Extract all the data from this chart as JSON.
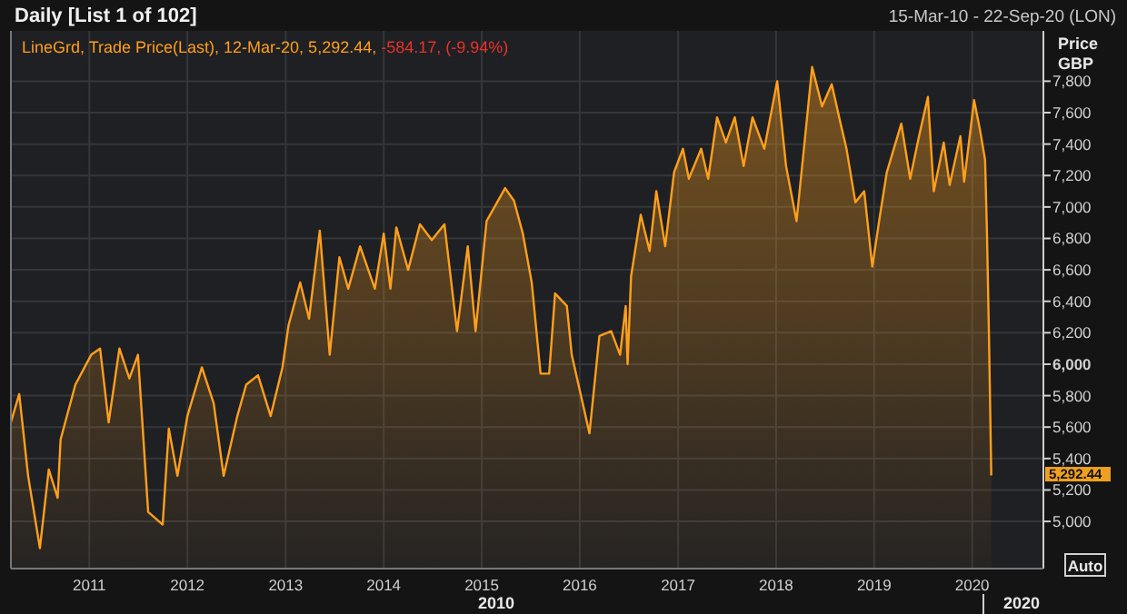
{
  "chart_data": {
    "type": "area",
    "title": "Daily [List 1 of 102]",
    "subtitle": "15-Mar-10 - 22-Sep-20 (LON)",
    "ylabel": "Price GBP",
    "annotations": [
      "-584.17, (-9.94%)",
      "2010",
      "2020",
      "Auto",
      "5,292.44"
    ],
    "x": [
      "2010-03-15",
      "2010-04-15",
      "2010-05-18",
      "2010-07-01",
      "2010-08-03",
      "2010-09-05",
      "2010-09-16",
      "2010-11-10",
      "2011-01-08",
      "2011-02-10",
      "2011-03-14",
      "2011-04-23",
      "2011-05-30",
      "2011-07-01",
      "2011-08-08",
      "2011-10-01",
      "2011-10-24",
      "2011-11-25",
      "2012-01-01",
      "2012-02-24",
      "2012-04-08",
      "2012-05-15",
      "2012-07-05",
      "2012-08-07",
      "2012-09-20",
      "2012-11-06",
      "2012-12-20",
      "2013-01-12",
      "2013-02-24",
      "2013-03-29",
      "2013-05-08",
      "2013-06-14",
      "2013-07-20",
      "2013-08-22",
      "2013-10-05",
      "2013-11-29",
      "2014-01-01",
      "2014-01-26",
      "2014-02-17",
      "2014-04-02",
      "2014-05-16",
      "2014-06-29",
      "2014-08-15",
      "2014-10-01",
      "2014-11-10",
      "2014-12-09",
      "2015-01-19",
      "2015-03-29",
      "2015-05-01",
      "2015-06-03",
      "2015-07-06",
      "2015-08-08",
      "2015-09-09",
      "2015-10-01",
      "2015-11-14",
      "2015-12-02",
      "2016-02-06",
      "2016-03-14",
      "2016-04-27",
      "2016-05-30",
      "2016-06-20",
      "2016-06-27",
      "2016-07-10",
      "2016-08-15",
      "2016-09-17",
      "2016-10-12",
      "2016-11-14",
      "2016-12-17",
      "2017-01-19",
      "2017-02-10",
      "2017-03-28",
      "2017-04-23",
      "2017-05-26",
      "2017-06-28",
      "2017-07-31",
      "2017-09-02",
      "2017-10-05",
      "2017-11-18",
      "2018-01-05",
      "2018-02-07",
      "2018-03-18",
      "2018-04-12",
      "2018-05-15",
      "2018-06-21",
      "2018-07-27",
      "2018-08-29",
      "2018-09-20",
      "2018-10-23",
      "2018-11-25",
      "2018-12-25",
      "2019-01-23",
      "2019-02-17",
      "2019-04-12",
      "2019-05-15",
      "2019-06-17",
      "2019-07-20",
      "2019-08-11",
      "2019-09-17",
      "2019-10-09",
      "2019-11-18",
      "2019-12-02",
      "2020-01-08",
      "2020-01-30",
      "2020-02-18",
      "2020-02-25",
      "2020-03-03",
      "2020-03-12"
    ],
    "series": [
      {
        "name": "LineGrd, Trade Price(Last), 12-Mar-20, 5,292.44,",
        "color": "#ff9f1c",
        "values": [
          5630,
          5810,
          5290,
          4830,
          5330,
          5150,
          5520,
          5870,
          6060,
          6100,
          5630,
          6100,
          5910,
          6060,
          5060,
          4980,
          5590,
          5290,
          5670,
          5980,
          5750,
          5290,
          5670,
          5870,
          5930,
          5670,
          5980,
          6250,
          6520,
          6290,
          6850,
          6060,
          6680,
          6480,
          6750,
          6480,
          6830,
          6480,
          6870,
          6600,
          6890,
          6790,
          6890,
          6210,
          6750,
          6210,
          6910,
          7120,
          7040,
          6830,
          6520,
          5940,
          5940,
          6450,
          6370,
          6060,
          5560,
          6180,
          6210,
          6060,
          6370,
          6000,
          6560,
          6950,
          6720,
          7100,
          6750,
          7220,
          7370,
          7180,
          7370,
          7180,
          7570,
          7410,
          7570,
          7260,
          7570,
          7370,
          7800,
          7260,
          6910,
          7330,
          7890,
          7640,
          7780,
          7530,
          7370,
          7030,
          7100,
          6620,
          6950,
          7220,
          7530,
          7180,
          7450,
          7700,
          7100,
          7410,
          7140,
          7450,
          7160,
          7680,
          7490,
          7300,
          6830,
          6220,
          5292.44
        ]
      }
    ],
    "xlim": [
      "2010-03-15",
      "2020-09-22"
    ],
    "xticks": [
      {
        "value": "2011-01-01",
        "label": "2011"
      },
      {
        "value": "2012-01-01",
        "label": "2012"
      },
      {
        "value": "2013-01-01",
        "label": "2013"
      },
      {
        "value": "2014-01-01",
        "label": "2014"
      },
      {
        "value": "2015-01-01",
        "label": "2015"
      },
      {
        "value": "2016-01-01",
        "label": "2016"
      },
      {
        "value": "2017-01-01",
        "label": "2017"
      },
      {
        "value": "2018-01-01",
        "label": "2018"
      },
      {
        "value": "2019-01-01",
        "label": "2019"
      },
      {
        "value": "2020-01-01",
        "label": "2020"
      }
    ],
    "ylim": [
      4700,
      8120
    ],
    "yticks": [
      {
        "value": 5000,
        "label": "5,000"
      },
      {
        "value": 5200,
        "label": "5,200"
      },
      {
        "value": 5400,
        "label": "5,400"
      },
      {
        "value": 5600,
        "label": "5,600"
      },
      {
        "value": 5800,
        "label": "5,800"
      },
      {
        "value": 6000,
        "label": "6,000"
      },
      {
        "value": 6200,
        "label": "6,200"
      },
      {
        "value": 6400,
        "label": "6,400"
      },
      {
        "value": 6600,
        "label": "6,600"
      },
      {
        "value": 6800,
        "label": "6,800"
      },
      {
        "value": 7000,
        "label": "7,000"
      },
      {
        "value": 7200,
        "label": "7,200"
      },
      {
        "value": 7400,
        "label": "7,400"
      },
      {
        "value": 7600,
        "label": "7,600"
      },
      {
        "value": 7800,
        "label": "7,800"
      }
    ],
    "grid": true,
    "legend": "top left"
  }
}
